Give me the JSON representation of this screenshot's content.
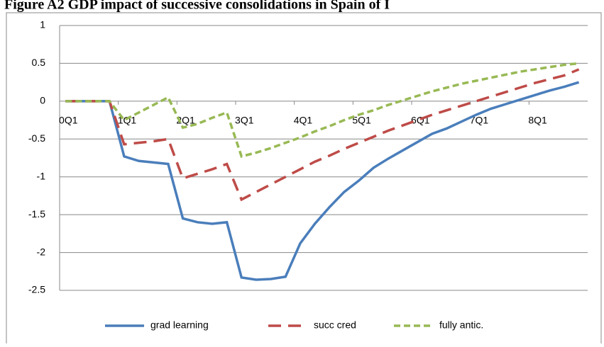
{
  "chart_data": {
    "type": "line",
    "title": "Figure A2  GDP impact of successive consolidations in Spain of I",
    "categories": [
      "0Q1",
      null,
      null,
      null,
      "1Q1",
      null,
      null,
      null,
      "2Q1",
      null,
      null,
      null,
      "3Q1",
      null,
      null,
      null,
      "4Q1",
      null,
      null,
      null,
      "5Q1",
      null,
      null,
      null,
      "6Q1",
      null,
      null,
      null,
      "7Q1",
      null,
      null,
      null,
      "8Q1",
      null,
      null,
      null
    ],
    "series": [
      {
        "name": "grad learning",
        "color": "#4a7ebb",
        "dash": "solid",
        "values": [
          0,
          0,
          0,
          0,
          -0.73,
          -0.79,
          -0.81,
          -0.83,
          -1.55,
          -1.6,
          -1.62,
          -1.6,
          -2.33,
          -2.36,
          -2.35,
          -2.32,
          -1.88,
          -1.62,
          -1.4,
          -1.2,
          -1.05,
          -0.88,
          -0.76,
          -0.65,
          -0.54,
          -0.43,
          -0.36,
          -0.27,
          -0.18,
          -0.1,
          -0.04,
          0.02,
          0.08,
          0.14,
          0.19,
          0.25
        ]
      },
      {
        "name": "succ cred",
        "color": "#be4b48",
        "dash": "long",
        "values": [
          0,
          0,
          0,
          0,
          -0.57,
          -0.55,
          -0.53,
          -0.5,
          -1.02,
          -0.96,
          -0.9,
          -0.83,
          -1.3,
          -1.2,
          -1.1,
          -1.0,
          -0.9,
          -0.8,
          -0.72,
          -0.63,
          -0.55,
          -0.47,
          -0.39,
          -0.32,
          -0.25,
          -0.18,
          -0.12,
          -0.06,
          0.0,
          0.06,
          0.12,
          0.18,
          0.24,
          0.29,
          0.34,
          0.42
        ]
      },
      {
        "name": "fully antic.",
        "color": "#98b954",
        "dash": "short",
        "values": [
          0,
          0,
          0,
          0,
          -0.25,
          -0.15,
          -0.05,
          0.05,
          -0.35,
          -0.3,
          -0.22,
          -0.15,
          -0.73,
          -0.68,
          -0.62,
          -0.55,
          -0.48,
          -0.4,
          -0.33,
          -0.25,
          -0.18,
          -0.12,
          -0.05,
          0.01,
          0.07,
          0.13,
          0.18,
          0.23,
          0.27,
          0.31,
          0.35,
          0.39,
          0.42,
          0.45,
          0.48,
          0.5
        ]
      }
    ],
    "ylim": [
      -2.5,
      1
    ],
    "yticks": [
      1,
      0.5,
      0,
      -0.5,
      -1,
      -1.5,
      -2,
      -2.5
    ],
    "grid": true
  }
}
